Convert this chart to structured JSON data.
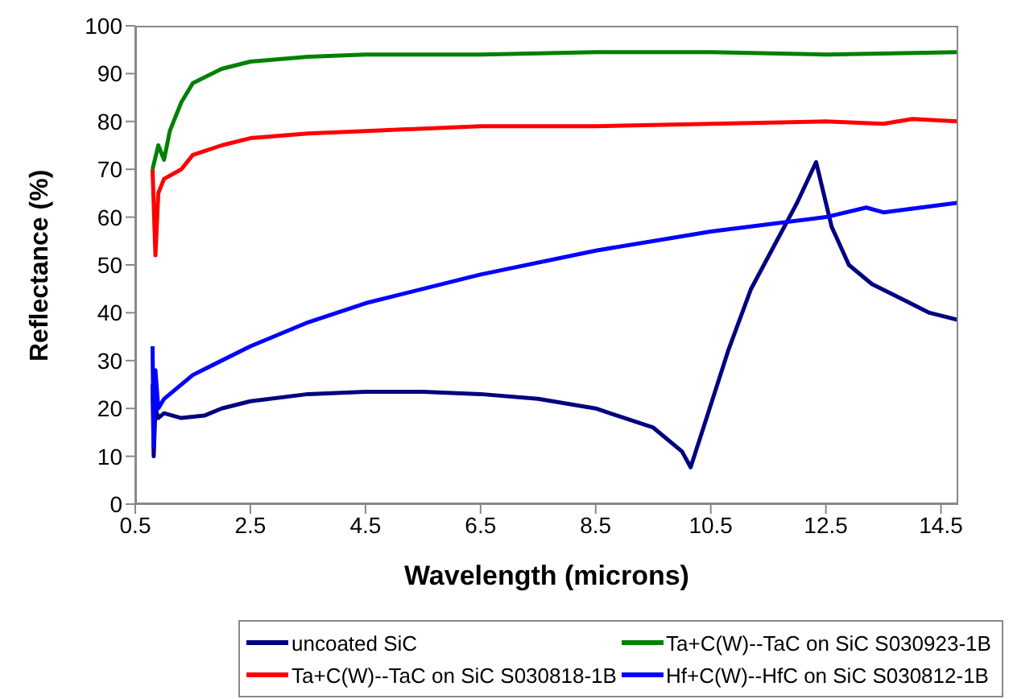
{
  "chart_data": {
    "type": "line",
    "xlabel": "Wavelength (microns)",
    "ylabel": "Reflectance (%)",
    "xlim": [
      0.5,
      14.8
    ],
    "xticks": [
      0.5,
      2.5,
      4.5,
      6.5,
      8.5,
      10.5,
      12.5,
      14.5
    ],
    "ylim": [
      0,
      100
    ],
    "yticks": [
      0,
      10,
      20,
      30,
      40,
      50,
      60,
      70,
      80,
      90,
      100
    ],
    "grid": false,
    "legend": "bottom",
    "marker": "none",
    "line_style": "solid",
    "series": [
      {
        "name": "uncoated SiC",
        "color": "#000080",
        "x": [
          0.8,
          0.82,
          0.85,
          0.9,
          1.0,
          1.3,
          1.7,
          2.0,
          2.5,
          3.5,
          4.5,
          5.5,
          6.5,
          7.5,
          8.5,
          9.5,
          10.0,
          10.15,
          10.4,
          10.8,
          11.2,
          11.6,
          12.0,
          12.33,
          12.6,
          12.9,
          13.3,
          13.8,
          14.3,
          14.8
        ],
        "values": [
          25,
          10,
          20,
          18,
          19,
          18,
          18.5,
          20,
          21.5,
          23,
          23.5,
          23.5,
          23,
          22,
          20,
          16,
          11,
          7.7,
          17,
          32,
          45,
          54,
          63,
          71.5,
          58,
          50,
          46,
          43,
          40,
          38.5
        ]
      },
      {
        "name": "Ta+C(W)--TaC on SiC S030818-1B",
        "color": "#ff0000",
        "x": [
          0.8,
          0.85,
          0.9,
          1.0,
          1.3,
          1.5,
          2.0,
          2.5,
          3.5,
          4.5,
          6.5,
          8.5,
          10.5,
          12.5,
          13.5,
          14.0,
          14.8
        ],
        "values": [
          70,
          52,
          65,
          68,
          70,
          73,
          75,
          76.5,
          77.5,
          78,
          79,
          79,
          79.5,
          80,
          79.5,
          80.5,
          80
        ]
      },
      {
        "name": "Ta+C(W)--TaC on SiC S030923-1B",
        "color": "#008000",
        "x": [
          0.8,
          0.9,
          1.0,
          1.1,
          1.3,
          1.5,
          2.0,
          2.5,
          3.5,
          4.5,
          6.5,
          8.5,
          10.5,
          12.5,
          14.8
        ],
        "values": [
          70,
          75,
          72,
          78,
          84,
          88,
          91,
          92.5,
          93.5,
          94,
          94,
          94.5,
          94.5,
          94,
          94.5
        ]
      },
      {
        "name": "Hf+C(W)--HfC on SiC S030812-1B",
        "color": "#0000ff",
        "x": [
          0.8,
          0.82,
          0.85,
          0.9,
          1.0,
          1.5,
          2.5,
          3.5,
          4.5,
          6.5,
          8.5,
          10.5,
          12.5,
          13.2,
          13.5,
          14.8
        ],
        "values": [
          33,
          12,
          28,
          20,
          22,
          27,
          33,
          38,
          42,
          48,
          53,
          57,
          60,
          62,
          61,
          63
        ]
      }
    ]
  }
}
